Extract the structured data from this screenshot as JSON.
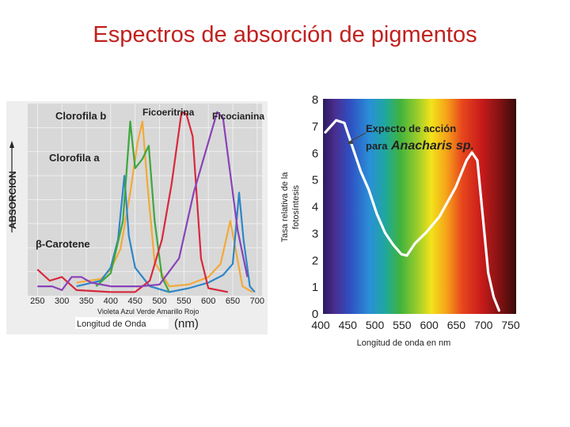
{
  "slide": {
    "title": "Espectros de absorción de pigmentos"
  },
  "colors": {
    "title": "#c0211f",
    "action_curve": "#ffffff",
    "panel_bg": "#d8d8d8"
  },
  "chart_data": [
    {
      "type": "line",
      "xlabel": "Longitud de Onda",
      "xunit": "(nm)",
      "ylabel": "ABSORCION",
      "xlim": [
        230,
        710
      ],
      "x_ticks": [
        250,
        300,
        350,
        400,
        450,
        500,
        550,
        600,
        650,
        700
      ],
      "grid": true,
      "color_band_labels": "Violeta Azul Verde   Amarillo Rojo",
      "series": [
        {
          "name": "Clorofila b",
          "color": "#f2a93a",
          "points": [
            [
              330,
              0.07
            ],
            [
              380,
              0.09
            ],
            [
              400,
              0.14
            ],
            [
              420,
              0.25
            ],
            [
              440,
              0.55
            ],
            [
              455,
              0.82
            ],
            [
              465,
              0.93
            ],
            [
              475,
              0.6
            ],
            [
              490,
              0.18
            ],
            [
              520,
              0.05
            ],
            [
              560,
              0.06
            ],
            [
              600,
              0.1
            ],
            [
              625,
              0.17
            ],
            [
              645,
              0.4
            ],
            [
              655,
              0.26
            ],
            [
              670,
              0.05
            ],
            [
              690,
              0.02
            ]
          ]
        },
        {
          "name": "Clorofila a",
          "color": "#2e86c8",
          "points": [
            [
              330,
              0.05
            ],
            [
              380,
              0.08
            ],
            [
              400,
              0.15
            ],
            [
              415,
              0.3
            ],
            [
              428,
              0.64
            ],
            [
              437,
              0.32
            ],
            [
              450,
              0.15
            ],
            [
              480,
              0.05
            ],
            [
              520,
              0.02
            ],
            [
              560,
              0.04
            ],
            [
              600,
              0.07
            ],
            [
              630,
              0.11
            ],
            [
              650,
              0.17
            ],
            [
              663,
              0.55
            ],
            [
              672,
              0.3
            ],
            [
              685,
              0.05
            ],
            [
              695,
              0.02
            ]
          ]
        },
        {
          "name": "β-Carotene",
          "color": "#3da73d",
          "points": [
            [
              370,
              0.05
            ],
            [
              400,
              0.12
            ],
            [
              425,
              0.4
            ],
            [
              440,
              0.93
            ],
            [
              450,
              0.68
            ],
            [
              465,
              0.73
            ],
            [
              478,
              0.8
            ],
            [
              490,
              0.4
            ],
            [
              505,
              0.1
            ],
            [
              520,
              0.02
            ]
          ]
        },
        {
          "name": "Ficoeritrina",
          "color": "#d8283c",
          "points": [
            [
              250,
              0.14
            ],
            [
              275,
              0.08
            ],
            [
              300,
              0.1
            ],
            [
              330,
              0.03
            ],
            [
              400,
              0.02
            ],
            [
              450,
              0.02
            ],
            [
              480,
              0.08
            ],
            [
              505,
              0.3
            ],
            [
              525,
              0.6
            ],
            [
              545,
              0.98
            ],
            [
              555,
              0.97
            ],
            [
              568,
              0.85
            ],
            [
              585,
              0.2
            ],
            [
              600,
              0.04
            ],
            [
              640,
              0.02
            ]
          ]
        },
        {
          "name": "Ficocianina",
          "color": "#8a42b8",
          "points": [
            [
              250,
              0.05
            ],
            [
              280,
              0.05
            ],
            [
              300,
              0.03
            ],
            [
              320,
              0.1
            ],
            [
              340,
              0.1
            ],
            [
              360,
              0.07
            ],
            [
              400,
              0.05
            ],
            [
              460,
              0.05
            ],
            [
              500,
              0.06
            ],
            [
              540,
              0.2
            ],
            [
              570,
              0.55
            ],
            [
              600,
              0.82
            ],
            [
              618,
              0.98
            ],
            [
              630,
              0.95
            ],
            [
              645,
              0.65
            ],
            [
              660,
              0.35
            ],
            [
              680,
              0.1
            ]
          ]
        }
      ]
    },
    {
      "type": "line",
      "xlabel": "Longitud de onda en nm",
      "ylabel": "Tasa relativa de la fotosíntesis",
      "xlim": [
        400,
        750
      ],
      "ylim": [
        0,
        8
      ],
      "x_ticks": [
        400,
        450,
        500,
        550,
        600,
        650,
        700,
        750
      ],
      "y_ticks": [
        0,
        1,
        2,
        3,
        4,
        5,
        6,
        7,
        8
      ],
      "annotation": {
        "text1": "Expecto de acción",
        "text2": "para",
        "species": "Anacharis sp."
      },
      "series": [
        {
          "name": "Expecto de acción para Anacharis sp.",
          "points": [
            [
              400,
              6.75
            ],
            [
              420,
              7.2
            ],
            [
              435,
              7.1
            ],
            [
              450,
              6.2
            ],
            [
              465,
              5.3
            ],
            [
              480,
              4.6
            ],
            [
              495,
              3.7
            ],
            [
              510,
              3.0
            ],
            [
              525,
              2.55
            ],
            [
              540,
              2.2
            ],
            [
              550,
              2.15
            ],
            [
              565,
              2.6
            ],
            [
              585,
              3.0
            ],
            [
              610,
              3.6
            ],
            [
              640,
              4.7
            ],
            [
              660,
              5.7
            ],
            [
              670,
              6.0
            ],
            [
              680,
              5.7
            ],
            [
              690,
              3.6
            ],
            [
              700,
              1.5
            ],
            [
              710,
              0.6
            ],
            [
              720,
              0.1
            ]
          ]
        }
      ]
    }
  ]
}
